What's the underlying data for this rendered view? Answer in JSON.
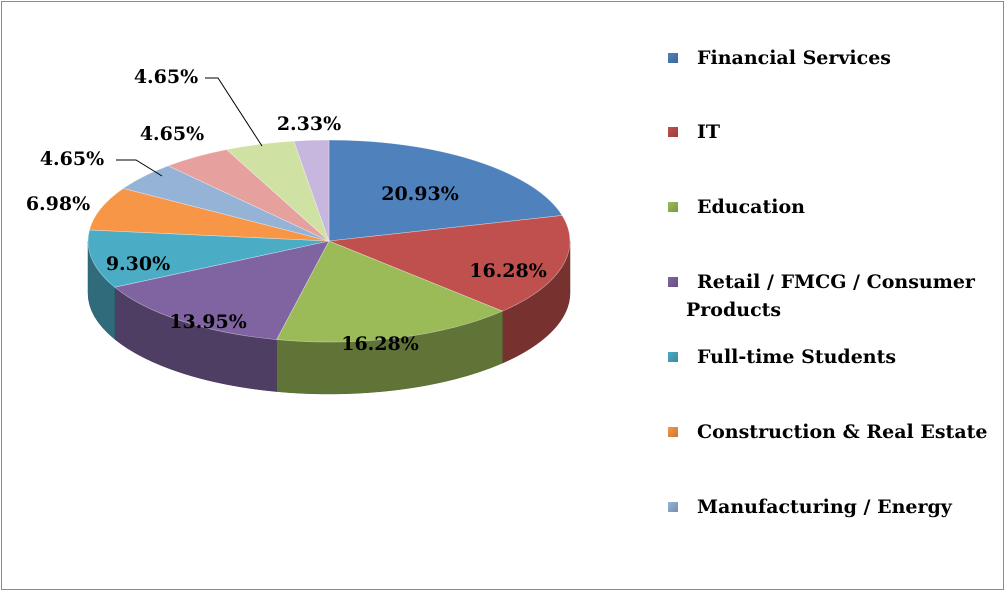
{
  "chart_data": {
    "type": "pie",
    "title": "",
    "legend_position": "right",
    "slices": [
      {
        "label": "Financial Services",
        "value": 20.93,
        "display": "20.93%",
        "color": "#4f81bd"
      },
      {
        "label": "IT",
        "value": 16.28,
        "display": "16.28%",
        "color": "#c0504d"
      },
      {
        "label": "Education",
        "value": 16.28,
        "display": "16.28%",
        "color": "#9bbb59"
      },
      {
        "label": "Retail / FMCG / Consumer Products",
        "value": 13.95,
        "display": "13.95%",
        "color": "#8064a2"
      },
      {
        "label": "Full-time Students",
        "value": 9.3,
        "display": "9.30%",
        "color": "#4bacc6"
      },
      {
        "label": "Construction & Real Estate",
        "value": 6.98,
        "display": "6.98%",
        "color": "#f79646"
      },
      {
        "label": "Manufacturing / Energy",
        "value": 4.65,
        "display": "4.65%",
        "color": "#95b3d7"
      },
      {
        "label": "",
        "value": 4.65,
        "display": "4.65%",
        "color": "#e6a09e"
      },
      {
        "label": "",
        "value": 4.65,
        "display": "4.65%",
        "color": "#cfe2a4"
      },
      {
        "label": "",
        "value": 2.33,
        "display": "2.33%",
        "color": "#c7b6dd"
      }
    ]
  }
}
